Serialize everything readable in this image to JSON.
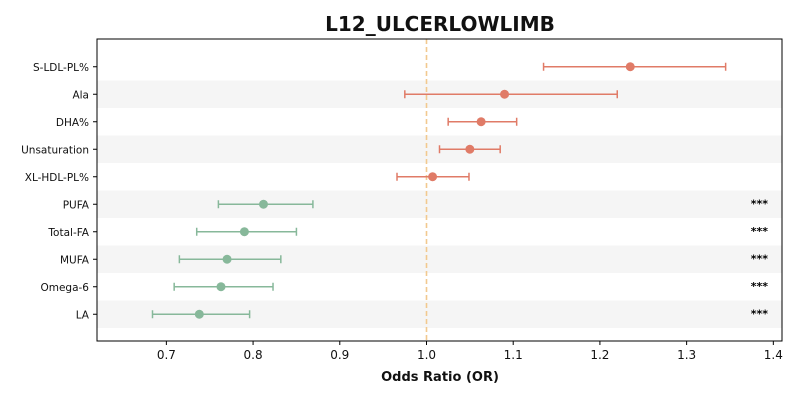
{
  "chart_data": {
    "type": "forest",
    "title": "L12_ULCERLOWLIMB",
    "xlabel": "Odds Ratio (OR)",
    "ylabel": "",
    "xlim": [
      0.62,
      1.41
    ],
    "xticks": [
      0.7,
      0.8,
      0.9,
      1.0,
      1.1,
      1.2,
      1.3,
      1.4
    ],
    "xtick_labels": [
      "0.7",
      "0.8",
      "0.9",
      "1.0",
      "1.1",
      "1.2",
      "1.3",
      "1.4"
    ],
    "reference_line": 1.0,
    "grid": false,
    "alternating_row_shading": true,
    "colors": {
      "positive": "#e07b67",
      "negative": "#87b89a",
      "reference_line": "#f2c98f",
      "row_shade": "#f5f5f5",
      "text": "#111111"
    },
    "rows": [
      {
        "label": "S-LDL-PL%",
        "or": 1.235,
        "ci_low": 1.135,
        "ci_high": 1.345,
        "direction": "positive",
        "significance": ""
      },
      {
        "label": "Ala",
        "or": 1.09,
        "ci_low": 0.975,
        "ci_high": 1.22,
        "direction": "positive",
        "significance": ""
      },
      {
        "label": "DHA%",
        "or": 1.063,
        "ci_low": 1.025,
        "ci_high": 1.104,
        "direction": "positive",
        "significance": ""
      },
      {
        "label": "Unsaturation",
        "or": 1.05,
        "ci_low": 1.015,
        "ci_high": 1.085,
        "direction": "positive",
        "significance": ""
      },
      {
        "label": "XL-HDL-PL%",
        "or": 1.007,
        "ci_low": 0.966,
        "ci_high": 1.049,
        "direction": "positive",
        "significance": ""
      },
      {
        "label": "PUFA",
        "or": 0.812,
        "ci_low": 0.76,
        "ci_high": 0.869,
        "direction": "negative",
        "significance": "***"
      },
      {
        "label": "Total-FA",
        "or": 0.79,
        "ci_low": 0.735,
        "ci_high": 0.85,
        "direction": "negative",
        "significance": "***"
      },
      {
        "label": "MUFA",
        "or": 0.77,
        "ci_low": 0.715,
        "ci_high": 0.832,
        "direction": "negative",
        "significance": "***"
      },
      {
        "label": "Omega-6",
        "or": 0.763,
        "ci_low": 0.709,
        "ci_high": 0.823,
        "direction": "negative",
        "significance": "***"
      },
      {
        "label": "LA",
        "or": 0.738,
        "ci_low": 0.684,
        "ci_high": 0.796,
        "direction": "negative",
        "significance": "***"
      }
    ]
  }
}
